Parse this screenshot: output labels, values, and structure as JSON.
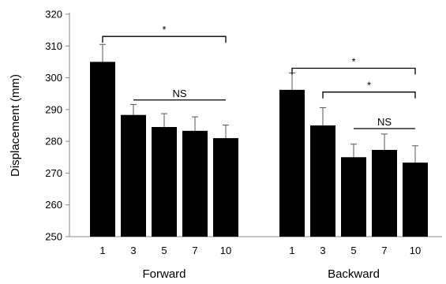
{
  "chart_data": {
    "type": "bar",
    "title": "",
    "ylabel": "Displacement (mm)",
    "ylim": [
      250,
      320
    ],
    "yticks": [
      250,
      260,
      270,
      280,
      290,
      300,
      310,
      320
    ],
    "grid": false,
    "bar_color": "#000000",
    "groups": [
      {
        "name": "Forward",
        "categories": [
          "1",
          "3",
          "5",
          "7",
          "10"
        ],
        "values": [
          305,
          288.3,
          284.5,
          283.3,
          281
        ],
        "errors": [
          5.5,
          3.3,
          4.2,
          4.4,
          4.1
        ]
      },
      {
        "name": "Backward",
        "categories": [
          "1",
          "3",
          "5",
          "7",
          "10"
        ],
        "values": [
          296.2,
          285,
          275,
          277.3,
          273.3
        ],
        "errors": [
          5.3,
          5.6,
          4.1,
          5.0,
          5.3
        ]
      }
    ],
    "annotations": [
      {
        "group": 0,
        "from": 0,
        "to": 4,
        "label": "*",
        "y": 313,
        "style": "bracket"
      },
      {
        "group": 0,
        "from": 1,
        "to": 4,
        "label": "NS",
        "y": 293,
        "style": "line"
      },
      {
        "group": 1,
        "from": 0,
        "to": 4,
        "label": "*",
        "y": 303,
        "style": "bracket"
      },
      {
        "group": 1,
        "from": 1,
        "to": 4,
        "label": "*",
        "y": 295.5,
        "style": "bracket"
      },
      {
        "group": 1,
        "from": 2,
        "to": 4,
        "label": "NS",
        "y": 284,
        "style": "line"
      }
    ]
  }
}
